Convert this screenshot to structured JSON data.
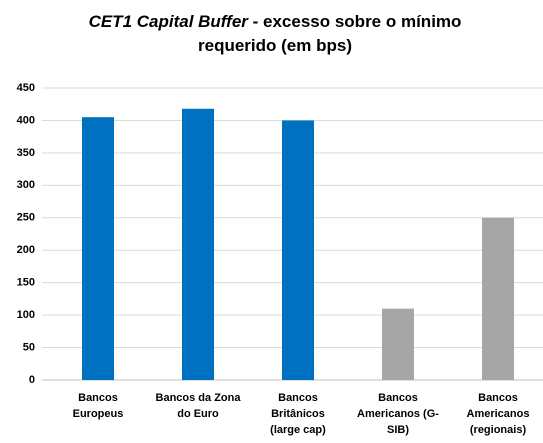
{
  "chart_data": {
    "type": "bar",
    "title": [
      "CET1 Capital Buffer",
      "- excesso sobre o mínimo requerido (em bps)"
    ],
    "categories": [
      "Bancos\nEuropeus",
      "Bancos da Zona\ndo Euro",
      "Bancos\nBritânicos\n(large cap)",
      "Bancos\nAmericanos (G-\nSIB)",
      "Bancos\nAmericanos\n(regionais)"
    ],
    "values": [
      405,
      418,
      400,
      110,
      250
    ],
    "colors": [
      "#0070c0",
      "#0070c0",
      "#0070c0",
      "#a6a6a6",
      "#a6a6a6"
    ],
    "ylim": [
      0,
      450
    ],
    "yticks": [
      0,
      50,
      100,
      150,
      200,
      250,
      300,
      350,
      400,
      450
    ],
    "grid": true
  }
}
